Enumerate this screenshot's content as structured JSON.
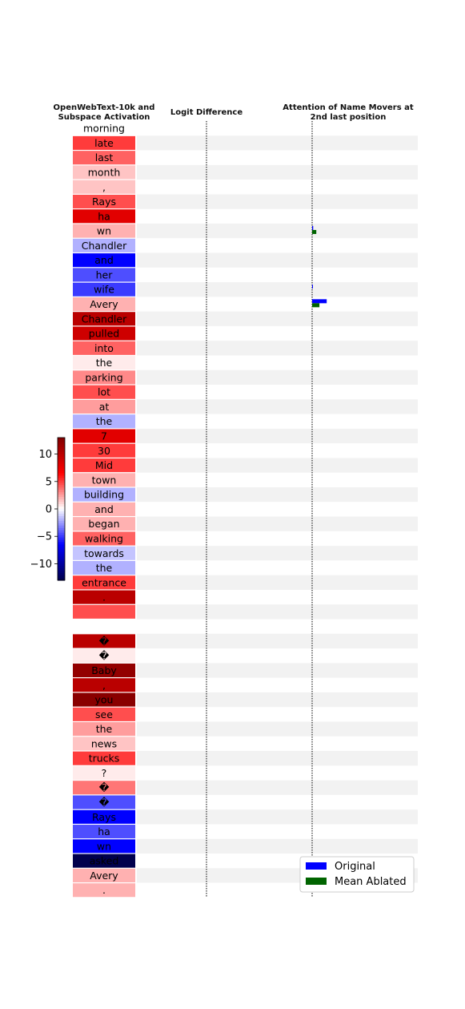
{
  "chart_data": [
    {
      "type": "heatmap",
      "title": "OpenWebText-10k and Subspace Activation",
      "tokens": [
        "morning",
        "late",
        "last",
        "month",
        ",",
        "Rays",
        "ha",
        "wn",
        "Chandler",
        "and",
        "her",
        "wife",
        "Avery",
        "Chandler",
        "pulled",
        "into",
        "the",
        "parking",
        "lot",
        "at",
        "the",
        "7",
        "30",
        "Mid",
        "town",
        "building",
        "and",
        "began",
        "walking",
        "towards",
        "the",
        "entrance",
        ".",
        "",
        "",
        "�",
        "�",
        "Baby",
        ",",
        "you",
        "see",
        "the",
        "news",
        "trucks",
        "?",
        "�",
        "�",
        "Rays",
        "ha",
        "wn",
        "asked",
        "Avery",
        "."
      ],
      "values": [
        0,
        5,
        4,
        1.5,
        1.5,
        4.5,
        8,
        2,
        -2,
        -6.5,
        -4.5,
        -5,
        2,
        10,
        9,
        4,
        0.5,
        3,
        4.5,
        2.5,
        -2,
        8,
        5,
        5,
        2,
        -2,
        2,
        2,
        4,
        -1.5,
        -2,
        5,
        10,
        4.5,
        0,
        10,
        0.5,
        12,
        10,
        12.5,
        4.5,
        2.5,
        1.5,
        5,
        0.5,
        3.5,
        -4.5,
        -6.5,
        -4.5,
        -6.5,
        -13,
        2,
        2
      ],
      "colorbar": {
        "ticks": [
          "10",
          "5",
          "0",
          "−5",
          "−10"
        ],
        "tick_values": [
          10,
          5,
          0,
          -5,
          -10
        ],
        "range": [
          -13,
          13
        ],
        "colormap": "seismic"
      }
    },
    {
      "type": "bar",
      "title": "Logit Difference",
      "values": [],
      "zero_line": true
    },
    {
      "type": "bar",
      "title": "Attention of Name Movers at 2nd last position",
      "categories": [
        "wn",
        "wife",
        "Avery"
      ],
      "series": [
        {
          "name": "Original",
          "color": "#0000ff",
          "values": [
            0.005,
            0.003,
            0.07
          ]
        },
        {
          "name": "Mean Ablated",
          "color": "#006400",
          "values": [
            0.02,
            0.0,
            0.035
          ]
        }
      ],
      "legend": "bottom-right"
    }
  ],
  "colors": {
    "stripe": "#f2f2f2",
    "original": "#0000ff",
    "ablated": "#006400"
  }
}
